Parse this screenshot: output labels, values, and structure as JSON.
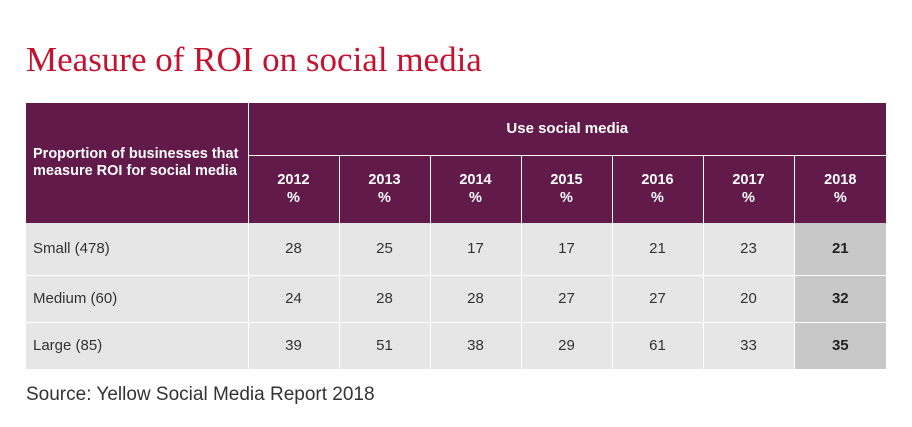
{
  "title": "Measure of ROI on social media",
  "table": {
    "row_header": "Proportion of businesses that measure ROI for social media",
    "group_header": "Use social media",
    "columns": [
      {
        "year": "2012",
        "unit": "%"
      },
      {
        "year": "2013",
        "unit": "%"
      },
      {
        "year": "2014",
        "unit": "%"
      },
      {
        "year": "2015",
        "unit": "%"
      },
      {
        "year": "2016",
        "unit": "%"
      },
      {
        "year": "2017",
        "unit": "%"
      },
      {
        "year": "2018",
        "unit": "%"
      }
    ],
    "rows": [
      {
        "label": "Small (478)",
        "values": [
          "28",
          "25",
          "17",
          "17",
          "21",
          "23",
          "21"
        ]
      },
      {
        "label": "Medium (60)",
        "values": [
          "24",
          "28",
          "28",
          "27",
          "27",
          "20",
          "32"
        ]
      },
      {
        "label": "Large (85)",
        "values": [
          "39",
          "51",
          "38",
          "29",
          "61",
          "33",
          "35"
        ]
      }
    ],
    "highlight_color": "#c8c8c8",
    "header_color": "#621a4a"
  },
  "source": "Source: Yellow Social Media Report 2018",
  "accent_color": "#c4122f"
}
